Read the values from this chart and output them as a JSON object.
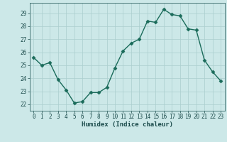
{
  "x": [
    0,
    1,
    2,
    3,
    4,
    5,
    6,
    7,
    8,
    9,
    10,
    11,
    12,
    13,
    14,
    15,
    16,
    17,
    18,
    19,
    20,
    21,
    22,
    23
  ],
  "y": [
    25.6,
    25.0,
    25.2,
    23.9,
    23.1,
    22.1,
    22.2,
    22.9,
    22.9,
    23.3,
    24.8,
    26.1,
    26.7,
    27.0,
    28.4,
    28.3,
    29.3,
    28.9,
    28.8,
    27.8,
    27.7,
    25.4,
    24.5,
    23.8
  ],
  "xlabel": "Humidex (Indice chaleur)",
  "xlim": [
    -0.5,
    23.5
  ],
  "ylim": [
    21.5,
    29.8
  ],
  "yticks": [
    22,
    23,
    24,
    25,
    26,
    27,
    28,
    29
  ],
  "xticks": [
    0,
    1,
    2,
    3,
    4,
    5,
    6,
    7,
    8,
    9,
    10,
    11,
    12,
    13,
    14,
    15,
    16,
    17,
    18,
    19,
    20,
    21,
    22,
    23
  ],
  "line_color": "#1a6b5a",
  "marker_color": "#1a6b5a",
  "bg_color": "#cce8e8",
  "grid_color": "#aacece",
  "axis_color": "#336666",
  "font_color": "#1a4a4a",
  "font_family": "monospace",
  "tick_fontsize": 5.5,
  "xlabel_fontsize": 6.5
}
